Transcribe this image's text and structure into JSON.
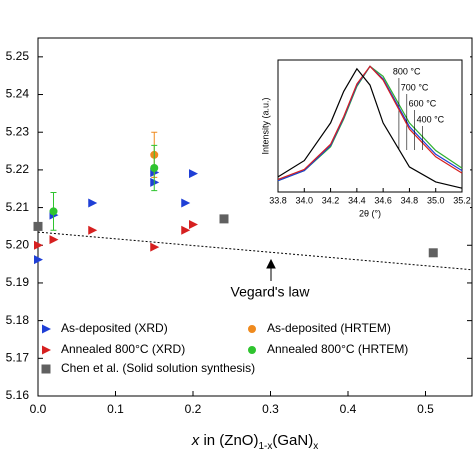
{
  "chart_data": [
    {
      "type": "scatter",
      "x_label": [
        "x",
        " in (ZnO)",
        "1-x",
        "(GaN)",
        "x"
      ],
      "xlim": [
        0,
        0.56
      ],
      "xticks": [
        {
          "value": 0,
          "label": "0.0"
        },
        0.1,
        0.2,
        0.3,
        0.4,
        0.5
      ],
      "ylim": [
        5.16,
        5.255
      ],
      "yticks": [
        5.16,
        5.17,
        5.18,
        5.19,
        {
          "value": 5.2,
          "label": "5.20"
        },
        5.21,
        5.22,
        5.23,
        5.24,
        5.25
      ],
      "series": [
        {
          "name": "As-deposited (XRD)",
          "marker": "triangle",
          "color": "#1f3fd6",
          "x": [
            0.0,
            0.02,
            0.07,
            0.15,
            0.15,
            0.19,
            0.2
          ],
          "values": [
            5.1962,
            5.208,
            5.2112,
            5.2167,
            5.2193,
            5.2112,
            5.219
          ]
        },
        {
          "name": "Annealed 800°C (XRD)",
          "marker": "triangle",
          "color": "#d62020",
          "x": [
            0.0,
            0.02,
            0.07,
            0.15,
            0.19,
            0.2
          ],
          "values": [
            5.2,
            5.2015,
            5.204,
            5.1995,
            5.204,
            5.2055
          ]
        },
        {
          "name": "Chen et al. (Solid solution synthesis)",
          "marker": "square",
          "color": "#606060",
          "x": [
            0.0,
            0.24,
            0.51
          ],
          "values": [
            5.205,
            5.207,
            5.198
          ]
        },
        {
          "name": "As-deposited (HRTEM)",
          "marker": "circle",
          "color": "#ef8a1e",
          "x": [
            0.15
          ],
          "values": [
            5.224
          ],
          "errors": [
            0.006
          ]
        },
        {
          "name": "Annealed 800°C (HRTEM)",
          "marker": "circle",
          "color": "#2fc42f",
          "x": [
            0.02,
            0.15
          ],
          "values": [
            5.209,
            5.2205
          ],
          "errors": [
            0.005,
            0.006
          ]
        }
      ],
      "reference_line": {
        "x": [
          0,
          0.56
        ],
        "values": [
          5.2035,
          5.1935
        ]
      },
      "annotation": "Vegard's law"
    },
    {
      "type": "line",
      "x_label": "2θ (°)",
      "y_label": "Intensity (a.u.)",
      "xlim": [
        33.8,
        35.2
      ],
      "xticks": [
        33.8,
        {
          "value": 34,
          "label": "34.0"
        },
        34.2,
        34.4,
        34.6,
        34.8,
        {
          "value": 35,
          "label": "35.0"
        },
        35.2
      ],
      "ylim": [
        0,
        105
      ],
      "x": [
        33.8,
        34.0,
        34.2,
        34.3,
        34.4,
        34.5,
        34.6,
        34.8,
        35.0,
        35.2
      ],
      "series": [
        {
          "name": "800 °C",
          "color": "#2fb02f",
          "values": [
            9,
            17,
            36,
            58,
            84,
            100,
            92,
            55,
            33,
            19
          ]
        },
        {
          "name": "700 °C",
          "color": "#1f3fd6",
          "values": [
            9,
            17,
            37,
            59,
            85,
            100,
            90,
            52,
            30,
            17
          ]
        },
        {
          "name": "600 °C",
          "color": "#d62020",
          "values": [
            10,
            18,
            38,
            60,
            86,
            100,
            89,
            50,
            28,
            15
          ]
        },
        {
          "name": "400 °C",
          "color": "#000000",
          "values": [
            12,
            25,
            55,
            80,
            98,
            85,
            55,
            20,
            8,
            3
          ]
        }
      ]
    }
  ]
}
